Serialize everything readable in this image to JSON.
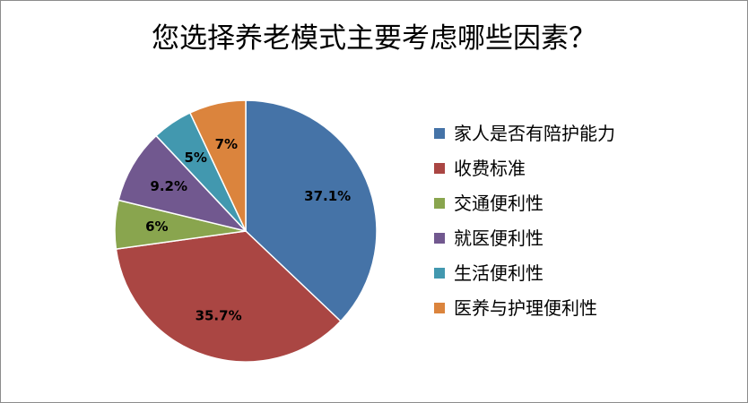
{
  "chart_data": {
    "type": "pie",
    "title": "您选择养老模式主要考虑哪些因素？",
    "legend_position": "right",
    "slices": [
      {
        "name": "家人是否有陪护能力",
        "value": 37.1,
        "label": "37.1%",
        "color": "#4573A7"
      },
      {
        "name": "收费标准",
        "value": 35.7,
        "label": "35.7%",
        "color": "#AA4643"
      },
      {
        "name": "交通便利性",
        "value": 6,
        "label": "6%",
        "color": "#89A54E"
      },
      {
        "name": "就医便利性",
        "value": 9.2,
        "label": "9.2%",
        "color": "#71588F"
      },
      {
        "name": "生活便利性",
        "value": 5,
        "label": "5%",
        "color": "#4298AF"
      },
      {
        "name": "医养与护理便利性",
        "value": 7,
        "label": "7%",
        "color": "#DB843D"
      }
    ]
  }
}
